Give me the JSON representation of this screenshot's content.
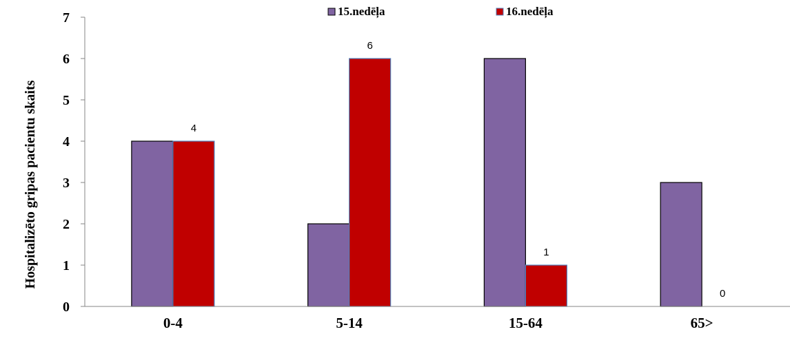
{
  "chart_data": {
    "type": "bar",
    "categories": [
      "0-4",
      "5-14",
      "15-64",
      "65>"
    ],
    "series": [
      {
        "name": "15.nedēļa",
        "values": [
          4,
          2,
          6,
          3
        ],
        "color": "#8064A2"
      },
      {
        "name": "16.nedēļa",
        "values": [
          4,
          6,
          1,
          0
        ],
        "color": "#C00000"
      }
    ],
    "data_labels_series": 1,
    "title": "",
    "xlabel": "",
    "ylabel": "Hospitalizēto gripas pacientu skaits",
    "ylim": [
      0,
      7
    ],
    "yticks": [
      "0",
      "1",
      "2",
      "3",
      "4",
      "5",
      "6",
      "7"
    ],
    "legend_position": "top-center",
    "grid": false
  }
}
